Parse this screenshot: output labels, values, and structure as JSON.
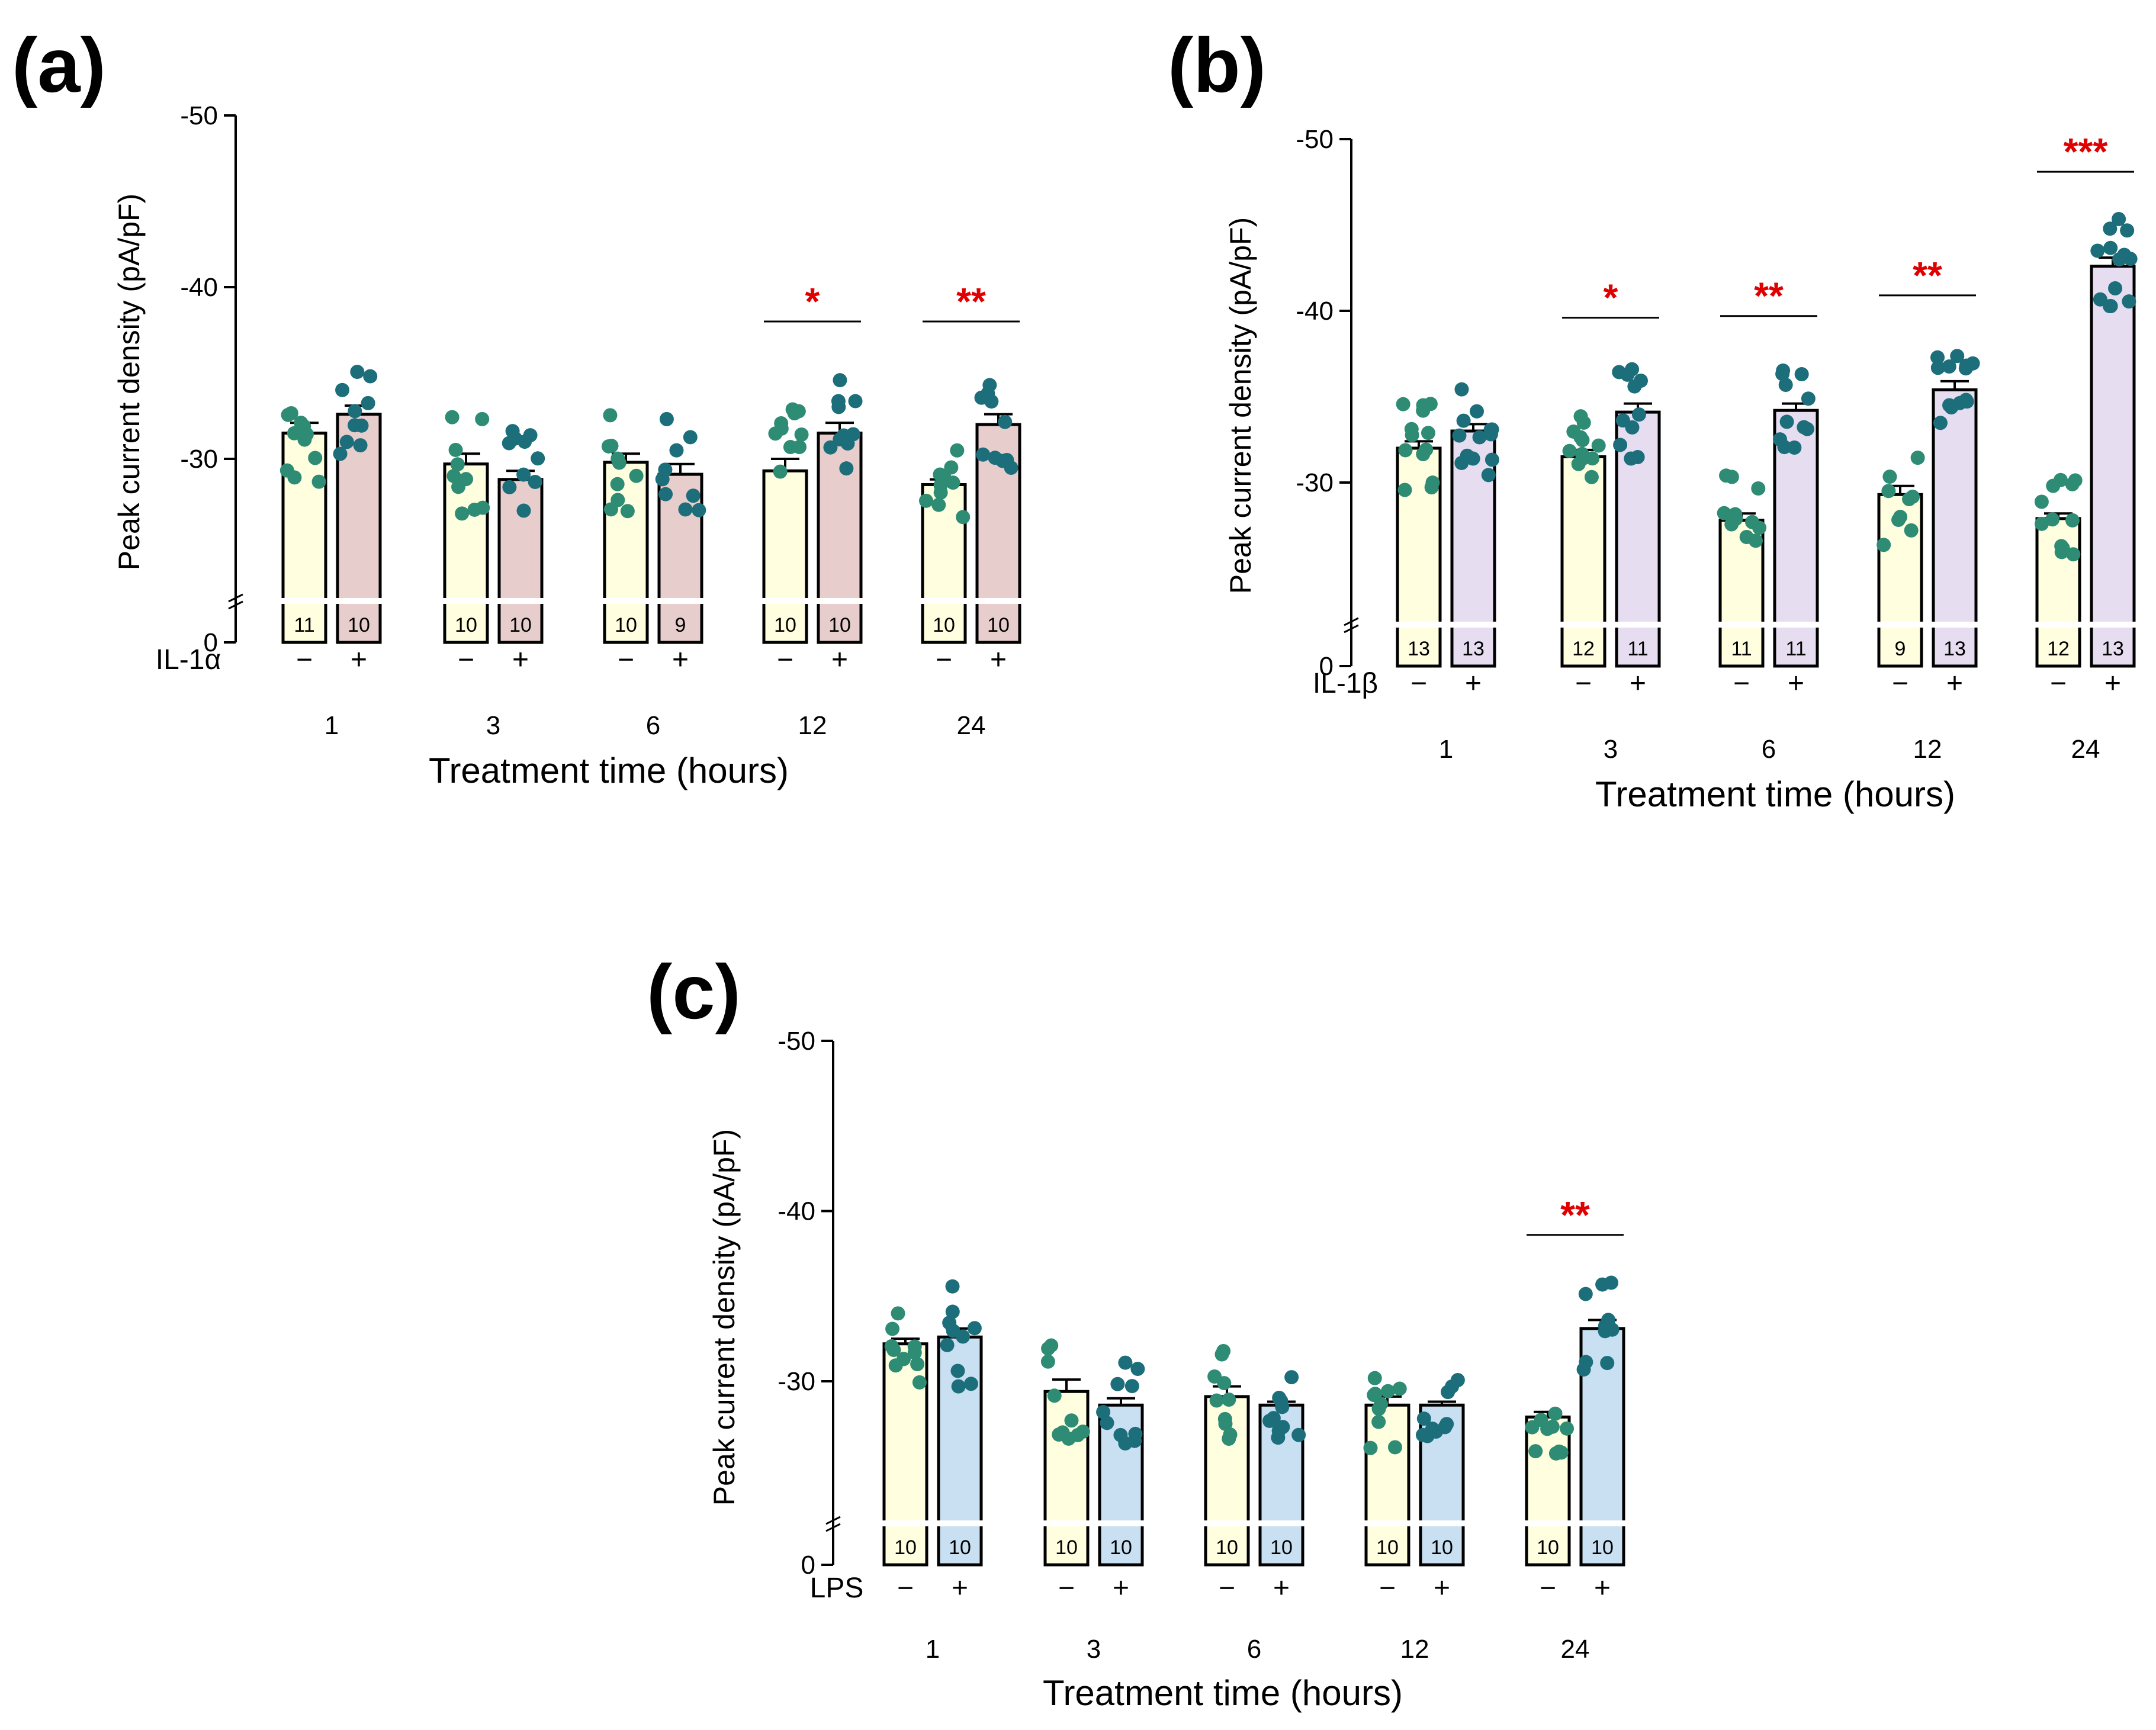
{
  "colors": {
    "control_fill": "#FFFFE0",
    "il1a_fill": "#E8CDCD",
    "il1b_fill": "#E6DDF0",
    "lps_fill": "#C8E0F2",
    "dot_control": "#2E8B74",
    "dot_treated": "#1B6E7A",
    "significance": "#E00000"
  },
  "chart_data": [
    {
      "id": "a",
      "panel_label": "(a)",
      "type": "bar",
      "ylabel": "Peak current density (pA/pF)",
      "xlabel": "Treatment time (hours)",
      "treatment_label": "IL-1α",
      "minus_label": "−",
      "plus_label": "+",
      "y_ticks": [
        "-50",
        "-40",
        "-30",
        "0"
      ],
      "ylim": [
        -22,
        -52
      ],
      "axis_break": true,
      "categories": [
        "1",
        "3",
        "6",
        "12",
        "24"
      ],
      "series": [
        {
          "name": "−",
          "values": [
            31.5,
            29.7,
            29.8,
            29.3,
            28.5
          ],
          "sem": [
            0.6,
            0.6,
            0.5,
            0.7,
            0.3
          ],
          "n": [
            "11",
            "10",
            "10",
            "10",
            "10"
          ]
        },
        {
          "name": "+",
          "values": [
            32.6,
            28.8,
            29.1,
            31.5,
            32.0
          ],
          "sem": [
            0.5,
            0.5,
            0.6,
            0.6,
            0.6
          ],
          "n": [
            "10",
            "10",
            "9",
            "10",
            "10"
          ]
        }
      ],
      "significance": [
        {
          "category": "12",
          "label": "*"
        },
        {
          "category": "24",
          "label": "**"
        }
      ]
    },
    {
      "id": "b",
      "panel_label": "(b)",
      "type": "bar",
      "ylabel": "Peak current density (pA/pF)",
      "xlabel": "Treatment time (hours)",
      "treatment_label": "IL-1β",
      "minus_label": "−",
      "plus_label": "+",
      "y_ticks": [
        "-50",
        "-40",
        "-30",
        "0"
      ],
      "ylim": [
        -22,
        -52
      ],
      "axis_break": true,
      "categories": [
        "1",
        "3",
        "6",
        "12",
        "24"
      ],
      "series": [
        {
          "name": "−",
          "values": [
            32.0,
            31.5,
            27.8,
            29.3,
            27.9
          ],
          "sem": [
            0.4,
            0.4,
            0.4,
            0.5,
            0.3
          ],
          "n": [
            "13",
            "12",
            "11",
            "9",
            "12"
          ]
        },
        {
          "name": "+",
          "values": [
            33.0,
            34.1,
            34.2,
            35.4,
            42.6
          ],
          "sem": [
            0.4,
            0.5,
            0.4,
            0.5,
            0.5
          ],
          "n": [
            "13",
            "11",
            "11",
            "13",
            "13"
          ]
        }
      ],
      "significance": [
        {
          "category": "3",
          "label": "*"
        },
        {
          "category": "6",
          "label": "**"
        },
        {
          "category": "12",
          "label": "**"
        },
        {
          "category": "24",
          "label": "***"
        }
      ]
    },
    {
      "id": "c",
      "panel_label": "(c)",
      "type": "bar",
      "ylabel": "Peak current density (pA/pF)",
      "xlabel": "Treatment time (hours)",
      "treatment_label": "LPS",
      "minus_label": "−",
      "plus_label": "+",
      "y_ticks": [
        "-50",
        "-40",
        "-30",
        "0"
      ],
      "ylim": [
        -22,
        -52
      ],
      "axis_break": true,
      "categories": [
        "1",
        "3",
        "6",
        "12",
        "24"
      ],
      "series": [
        {
          "name": "−",
          "values": [
            32.2,
            29.4,
            29.1,
            28.6,
            27.9
          ],
          "sem": [
            0.3,
            0.7,
            0.6,
            0.5,
            0.3
          ],
          "n": [
            "10",
            "10",
            "10",
            "10",
            "10"
          ]
        },
        {
          "name": "+",
          "values": [
            32.6,
            28.6,
            28.6,
            28.6,
            33.1
          ],
          "sem": [
            0.5,
            0.4,
            0.2,
            0.2,
            0.5
          ],
          "n": [
            "10",
            "10",
            "10",
            "10",
            "10"
          ]
        }
      ],
      "significance": [
        {
          "category": "24",
          "label": "**"
        }
      ]
    }
  ]
}
